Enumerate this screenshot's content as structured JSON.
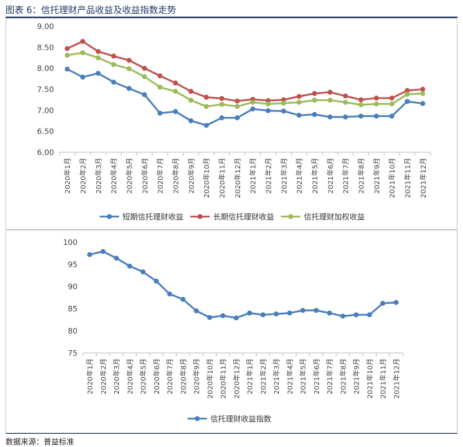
{
  "figure_title": "图表 6：信托理财产品收益及收益指数走势",
  "source": "数据来源：普益标准",
  "chart_data": [
    {
      "type": "line",
      "categories": [
        "2020年1月",
        "2020年2月",
        "2020年3月",
        "2020年4月",
        "2020年5月",
        "2020年6月",
        "2020年7月",
        "2020年8月",
        "2020年9月",
        "2020年10月",
        "2020年11月",
        "2020年12月",
        "2021年1月",
        "2021年2月",
        "2021年3月",
        "2021年4月",
        "2021年5月",
        "2021年6月",
        "2021年7月",
        "2021年8月",
        "2021年9月",
        "2021年10月",
        "2021年11月",
        "2021年12月"
      ],
      "ylim": [
        6.0,
        9.0
      ],
      "yticks": [
        "6.00",
        "6.50",
        "7.00",
        "7.50",
        "8.00",
        "8.50",
        "9.00"
      ],
      "legend_position": "bottom",
      "series": [
        {
          "name": "短期信托理财收益",
          "color": "#4a7ebb",
          "values": [
            7.98,
            7.79,
            7.88,
            7.67,
            7.52,
            7.37,
            6.93,
            6.97,
            6.75,
            6.64,
            6.82,
            6.82,
            7.03,
            6.99,
            6.98,
            6.88,
            6.9,
            6.84,
            6.84,
            6.86,
            6.86,
            6.86,
            7.21,
            7.16
          ]
        },
        {
          "name": "长期信托理财收益",
          "color": "#c0504d",
          "values": [
            8.47,
            8.64,
            8.4,
            8.29,
            8.19,
            8.0,
            7.82,
            7.65,
            7.45,
            7.31,
            7.28,
            7.22,
            7.26,
            7.23,
            7.25,
            7.33,
            7.4,
            7.43,
            7.34,
            7.25,
            7.29,
            7.29,
            7.47,
            7.5
          ]
        },
        {
          "name": "信托理财加权收益",
          "color": "#9bbb59",
          "values": [
            8.31,
            8.37,
            8.25,
            8.09,
            7.99,
            7.8,
            7.55,
            7.45,
            7.24,
            7.09,
            7.14,
            7.09,
            7.19,
            7.15,
            7.17,
            7.19,
            7.24,
            7.24,
            7.19,
            7.13,
            7.15,
            7.15,
            7.38,
            7.4
          ]
        }
      ]
    },
    {
      "type": "line",
      "categories": [
        "2020年1月",
        "2020年2月",
        "2020年3月",
        "2020年4月",
        "2020年5月",
        "2020年6月",
        "2020年7月",
        "2020年8月",
        "2020年9月",
        "2020年10月",
        "2020年11月",
        "2020年12月",
        "2021年1月",
        "2021年2月",
        "2021年3月",
        "2021年4月",
        "2021年5月",
        "2021年6月",
        "2021年7月",
        "2021年8月",
        "2021年9月",
        "2021年10月",
        "2021年11月",
        "2021年12月"
      ],
      "ylim": [
        75,
        100
      ],
      "yticks": [
        "75",
        "80",
        "85",
        "90",
        "95",
        "100"
      ],
      "legend_position": "bottom",
      "series": [
        {
          "name": "信托理财收益指数",
          "color": "#4a7ebb",
          "values": [
            97.2,
            97.9,
            96.4,
            94.6,
            93.3,
            91.2,
            88.3,
            87.1,
            84.5,
            83.0,
            83.4,
            82.9,
            84.0,
            83.6,
            83.8,
            84.0,
            84.6,
            84.6,
            84.0,
            83.3,
            83.6,
            83.6,
            86.2,
            86.4
          ]
        }
      ]
    }
  ]
}
